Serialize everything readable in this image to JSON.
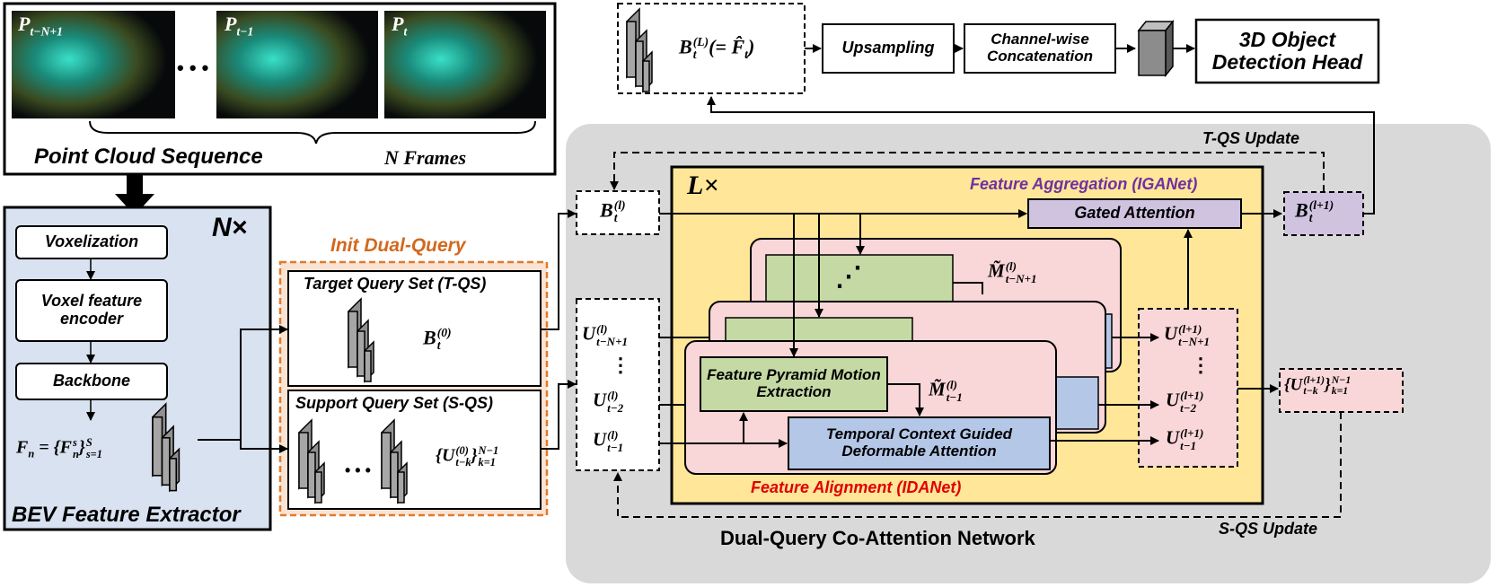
{
  "colors": {
    "bev_panel": "#d9e2f1",
    "init_dual_query_border": "#e07b2a",
    "init_dual_query_title": "#d2691e",
    "network_panel": "#d9d9d9",
    "layer_panel": "#ffe699",
    "feature_aggregation_text": "#7030a0",
    "feature_alignment_text": "#e00000",
    "gated_attention_fill": "#cfc3e0",
    "motion_block_fill": "#c5d9a4",
    "deformable_block_fill": "#b4c7e7",
    "layer_cards_fill": "#f9d6d8",
    "output_pink": "#f9d6d8",
    "output_purple": "#cfc3e0"
  },
  "point_cloud": {
    "title": "Point Cloud Sequence",
    "frames_label": "N Frames",
    "frame_labels": [
      "P",
      "P",
      "P"
    ],
    "frame_subs": [
      "t−N+1",
      "t−1",
      "t"
    ],
    "dots": "• • •"
  },
  "bev": {
    "title": "BEV Feature Extractor",
    "repeat": "N×",
    "steps": [
      "Voxelization",
      "Voxel feature encoder",
      "Backbone"
    ],
    "feature_formula": {
      "lhs": "F",
      "lhs_sub": "n",
      "eq": " = {",
      "inner": "F",
      "inner_sup": "s",
      "inner_sub": "n",
      "close": "}",
      "range_sup": "S",
      "range_sub": "s=1"
    }
  },
  "init_dual_query": {
    "title": "Init Dual-Query",
    "target_title": "Target Query Set (T-QS)",
    "target_symbol": {
      "base": "B",
      "sup": "(0)",
      "sub": "t"
    },
    "support_title": "Support Query Set (S-QS)",
    "support_dots": "• • •",
    "support_symbol": {
      "open": "{",
      "base": "U",
      "sup": "(0)",
      "sub": "t−k",
      "close": "}",
      "range_sup": "N−1",
      "range_sub": "k=1"
    }
  },
  "top_pipeline": {
    "output_symbol": {
      "base": "B",
      "sup": "(L)",
      "sub": "t",
      "rest": "(= F̂",
      "rest_sub": "t",
      "rest_close": ")"
    },
    "upsampling": "Upsampling",
    "concat": "Channel-wise Concatenation",
    "detection_head": "3D Object Detection Head"
  },
  "network": {
    "title": "Dual-Query Co-Attention Network",
    "tqs_update": "T-QS Update",
    "sqs_update": "S-QS Update",
    "layers": "L×",
    "feature_aggregation": "Feature Aggregation (IGANet)",
    "gated_attention": "Gated Attention",
    "feature_alignment": "Feature Alignment (IDANet)",
    "motion_block": "Feature Pyramid Motion Extraction",
    "deformable_block": "Temporal Context Guided Deformable Attention",
    "b_in": {
      "base": "B",
      "sup": "(l)",
      "sub": "t"
    },
    "b_out": {
      "base": "B",
      "sup": "(l+1)",
      "sub": "t"
    },
    "u_in": [
      {
        "base": "U",
        "sup": "(l)",
        "sub": "t−N+1"
      },
      {
        "base": "U",
        "sup": "(l)",
        "sub": "t−2"
      },
      {
        "base": "U",
        "sup": "(l)",
        "sub": "t−1"
      }
    ],
    "u_out": [
      {
        "base": "U",
        "sup": "(l+1)",
        "sub": "t−N+1"
      },
      {
        "base": "U",
        "sup": "(l+1)",
        "sub": "t−2"
      },
      {
        "base": "U",
        "sup": "(l+1)",
        "sub": "t−1"
      }
    ],
    "m_top": {
      "base": "M̃",
      "sup": "(l)",
      "sub": "t−N+1"
    },
    "m_mid": {
      "base": "M̃",
      "sup": "(l)",
      "sub": "t−1"
    },
    "u_set_out": {
      "open": "{",
      "base": "U",
      "sup": "(l+1)",
      "sub": "t−k",
      "close": "}",
      "range_sup": "N−1",
      "range_sub": "k=1"
    },
    "vdots": "⋮",
    "diag_dots": "⋰"
  }
}
